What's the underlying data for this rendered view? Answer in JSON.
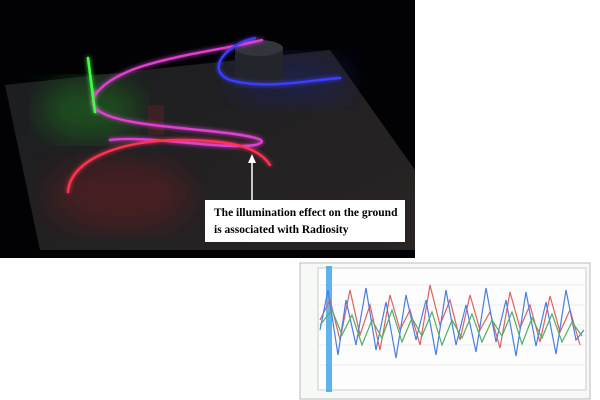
{
  "caption": {
    "lines": [
      "The illumination effect on the ground",
      "is associated with Radiosity"
    ]
  }
}
